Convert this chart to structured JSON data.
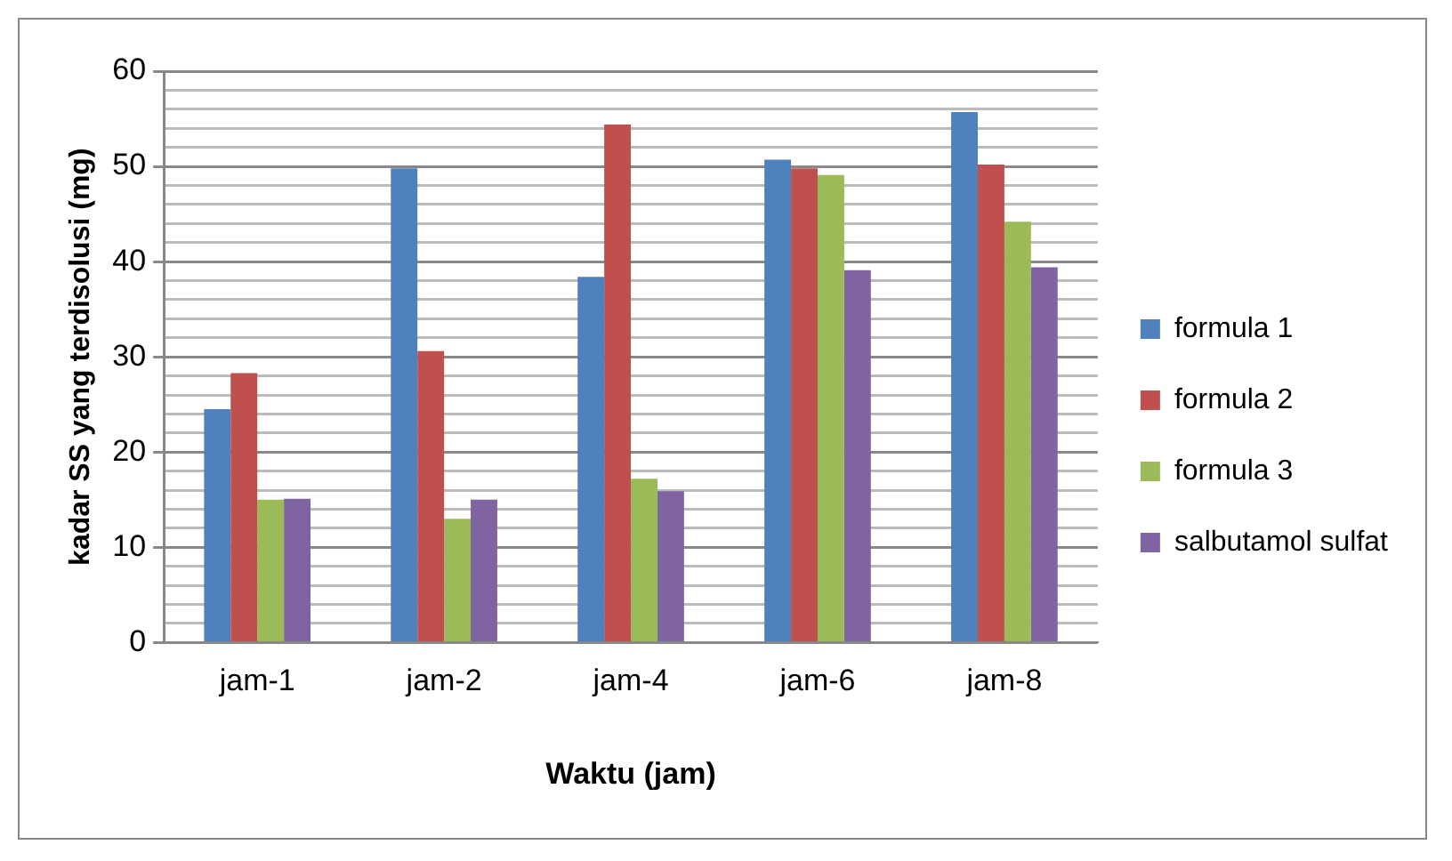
{
  "chart_data": {
    "type": "bar",
    "xlabel": "Waktu (jam)",
    "ylabel": "kadar SS yang terdisolusi (mg)",
    "categories": [
      "jam-1",
      "jam-2",
      "jam-4",
      "jam-6",
      "jam-8"
    ],
    "series": [
      {
        "name": "formula 1",
        "color": "#4f81bd",
        "values": [
          24.5,
          49.8,
          38.4,
          50.7,
          55.7
        ]
      },
      {
        "name": "formula 2",
        "color": "#c0504d",
        "values": [
          28.3,
          30.6,
          54.4,
          49.8,
          50.2
        ]
      },
      {
        "name": "formula 3",
        "color": "#9bbb59",
        "values": [
          15,
          13,
          17.2,
          49.1,
          44.2
        ]
      },
      {
        "name": "salbutamol sulfat",
        "color": "#8064a2",
        "values": [
          15.1,
          15,
          15.9,
          39.1,
          39.4
        ]
      }
    ],
    "ylim": [
      0,
      60
    ],
    "yticks": [
      0,
      {
        "value": 2,
        "label": null
      },
      {
        "value": 4,
        "label": null
      },
      {
        "value": 6,
        "label": null
      },
      {
        "value": 8,
        "label": null
      },
      10,
      {
        "value": 12,
        "label": null
      },
      {
        "value": 14,
        "label": null
      },
      {
        "value": 16,
        "label": null
      },
      {
        "value": 18,
        "label": null
      },
      20,
      {
        "value": 22,
        "label": null
      },
      {
        "value": 24,
        "label": null
      },
      {
        "value": 26,
        "label": null
      },
      {
        "value": 28,
        "label": null
      },
      30,
      {
        "value": 32,
        "label": null
      },
      {
        "value": 34,
        "label": null
      },
      {
        "value": 36,
        "label": null
      },
      {
        "value": 38,
        "label": null
      },
      40,
      {
        "value": 42,
        "label": null
      },
      {
        "value": 44,
        "label": null
      },
      {
        "value": 46,
        "label": null
      },
      {
        "value": 48,
        "label": null
      },
      50,
      {
        "value": 52,
        "label": null
      },
      {
        "value": 54,
        "label": null
      },
      {
        "value": 56,
        "label": null
      },
      {
        "value": 58,
        "label": null
      },
      60
    ],
    "grid": "y",
    "legend": "right"
  }
}
